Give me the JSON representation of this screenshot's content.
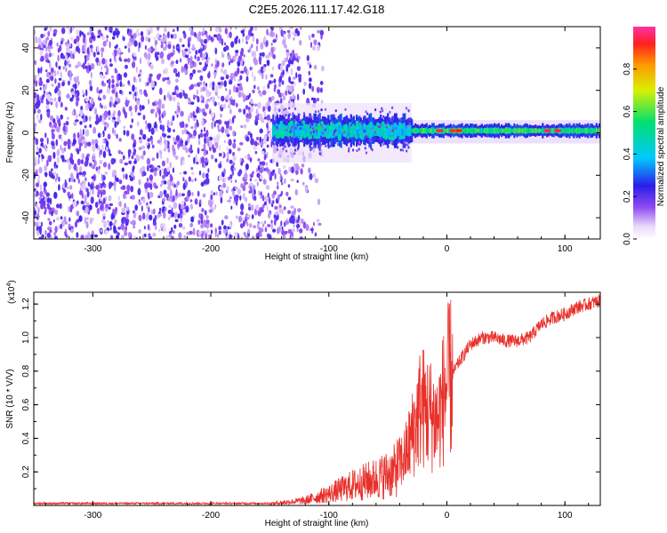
{
  "title": "C2E5.2026.111.17.42.G18",
  "colors": {
    "snr_line": "#e8302a",
    "speckle": "#7b2ee6",
    "background": "#ffffff"
  },
  "chart_data": [
    {
      "type": "heatmap",
      "name": "spectrogram",
      "xlabel": "Height of straight line (km)",
      "ylabel": "Frequency (Hz)",
      "xlim": [
        -350,
        130
      ],
      "ylim": [
        -50,
        50
      ],
      "xticks": [
        "-300",
        "-200",
        "-100",
        "0",
        "100"
      ],
      "yticks": [
        "-40",
        "-20",
        "0",
        "20",
        "40"
      ],
      "description_points": {
        "noise_region_x": [
          -350,
          -125
        ],
        "signal_onset_x": -148,
        "band_center_freq": 1,
        "band_segments": [
          {
            "x": [
              -148,
              -30
            ],
            "half_width": 7,
            "level": 0.4
          },
          {
            "x": [
              -30,
              130
            ],
            "half_width": 3,
            "level": 0.55
          }
        ],
        "peaks": [
          {
            "x": -6,
            "level": 0.95
          },
          {
            "x": 5,
            "level": 0.9
          },
          {
            "x": 10,
            "level": 0.92
          },
          {
            "x": 85,
            "level": 0.95
          },
          {
            "x": 94,
            "level": 0.95
          }
        ]
      },
      "colorbar": {
        "label": "Normalized spectral amplitude",
        "range": [
          0,
          1
        ],
        "ticks": [
          "0.0",
          "0.2",
          "0.4",
          "0.6",
          "0.8"
        ]
      }
    },
    {
      "type": "line",
      "name": "snr",
      "xlabel": "Height of straight line (km)",
      "ylabel": "SNR (10 * V/V)",
      "scale_note": "(x10",
      "scale_exp": "4",
      "xlim": [
        -350,
        130
      ],
      "ylim": [
        0,
        1.27
      ],
      "xticks": [
        "-300",
        "-200",
        "-100",
        "0",
        "100"
      ],
      "yticks": [
        "0.2",
        "0.4",
        "0.6",
        "0.8",
        "1.0",
        "1.2"
      ],
      "series": [
        {
          "name": "SNR",
          "x": [
            -350,
            -150,
            -120,
            -100,
            -80,
            -60,
            -45,
            -35,
            -28,
            -22,
            -15,
            -8,
            0,
            10,
            20,
            30,
            40,
            50,
            60,
            70,
            80,
            90,
            100,
            110,
            120,
            130
          ],
          "y": [
            0.01,
            0.01,
            0.03,
            0.07,
            0.12,
            0.16,
            0.2,
            0.3,
            0.45,
            0.6,
            0.55,
            0.5,
            0.72,
            0.85,
            0.96,
            1.0,
            1.0,
            0.98,
            0.98,
            1.0,
            1.08,
            1.12,
            1.14,
            1.18,
            1.2,
            1.22
          ]
        }
      ]
    }
  ]
}
